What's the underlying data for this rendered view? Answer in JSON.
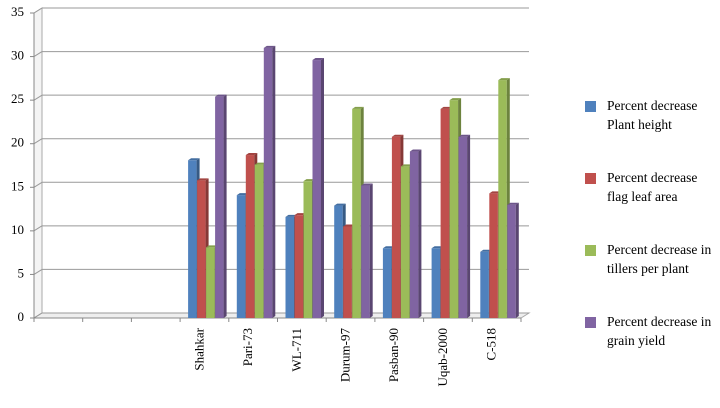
{
  "chart_data": {
    "type": "bar",
    "categories": [
      null,
      null,
      null,
      "Shahkar",
      "Pari-73",
      "WL-711",
      "Durum-97",
      "Pasban-90",
      "Uqab-2000",
      "C-518"
    ],
    "series": [
      {
        "name": "Percent decrease Plant height",
        "color": "#4f81bd",
        "values": [
          null,
          null,
          null,
          18.1,
          14.1,
          11.6,
          12.9,
          8.0,
          8.0,
          7.6
        ]
      },
      {
        "name": "Percent decrease flag leaf area",
        "color": "#c0504d",
        "values": [
          null,
          null,
          null,
          15.8,
          18.7,
          11.8,
          10.5,
          20.8,
          24.0,
          14.3
        ]
      },
      {
        "name": "Percent decrease in tillers per plant",
        "color": "#9bbb59",
        "values": [
          null,
          null,
          null,
          8.1,
          17.6,
          15.7,
          24.0,
          17.4,
          25.0,
          27.3
        ]
      },
      {
        "name": "Percent decrease in grain yield",
        "color": "#8064a2",
        "values": [
          null,
          null,
          null,
          25.4,
          31.0,
          29.6,
          15.2,
          19.1,
          20.8,
          13.0
        ]
      }
    ],
    "ylim": [
      0,
      35
    ],
    "yticks": [
      0,
      5,
      10,
      15,
      20,
      25,
      30,
      35
    ],
    "grid": true,
    "legend": "right"
  }
}
